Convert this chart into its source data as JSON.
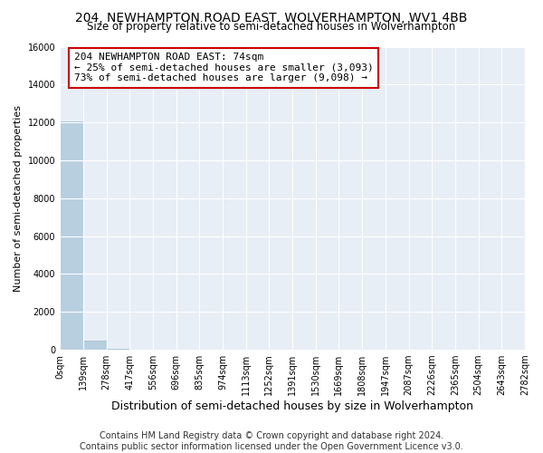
{
  "title": "204, NEWHAMPTON ROAD EAST, WOLVERHAMPTON, WV1 4BB",
  "subtitle": "Size of property relative to semi-detached houses in Wolverhampton",
  "xlabel": "Distribution of semi-detached houses by size in Wolverhampton",
  "ylabel": "Number of semi-detached properties",
  "footer1": "Contains HM Land Registry data © Crown copyright and database right 2024.",
  "footer2": "Contains public sector information licensed under the Open Government Licence v3.0.",
  "annotation_line1": "204 NEWHAMPTON ROAD EAST: 74sqm",
  "annotation_line2": "← 25% of semi-detached houses are smaller (3,093)",
  "annotation_line3": "73% of semi-detached houses are larger (9,098) →",
  "bar_values": [
    12050,
    500,
    30,
    15,
    10,
    8,
    5,
    4,
    3,
    3,
    2,
    2,
    1,
    1,
    1,
    1,
    0,
    0,
    0,
    0
  ],
  "bar_edges": [
    0,
    139,
    278,
    417,
    556,
    696,
    835,
    974,
    1113,
    1252,
    1391,
    1530,
    1669,
    1808,
    1947,
    2087,
    2226,
    2365,
    2504,
    2643,
    2782
  ],
  "tick_labels": [
    "0sqm",
    "139sqm",
    "278sqm",
    "417sqm",
    "556sqm",
    "696sqm",
    "835sqm",
    "974sqm",
    "1113sqm",
    "1252sqm",
    "1391sqm",
    "1530sqm",
    "1669sqm",
    "1808sqm",
    "1947sqm",
    "2087sqm",
    "2226sqm",
    "2365sqm",
    "2504sqm",
    "2643sqm",
    "2782sqm"
  ],
  "bar_color": "#b8cfe0",
  "bar_edge_color": "#9ab8ce",
  "annotation_box_facecolor": "#ffffff",
  "annotation_box_edgecolor": "#cc0000",
  "ylim": [
    0,
    16000
  ],
  "yticks": [
    0,
    2000,
    4000,
    6000,
    8000,
    10000,
    12000,
    14000,
    16000
  ],
  "bg_color": "#e8eef5",
  "grid_color": "#ffffff",
  "title_fontsize": 10,
  "subtitle_fontsize": 8.5,
  "ylabel_fontsize": 8,
  "xlabel_fontsize": 9,
  "tick_fontsize": 7,
  "annotation_fontsize": 8,
  "footer_fontsize": 7
}
